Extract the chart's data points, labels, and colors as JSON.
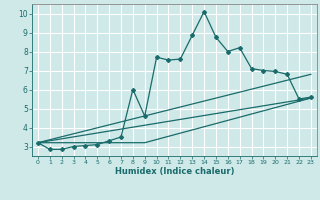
{
  "xlabel": "Humidex (Indice chaleur)",
  "bg_color": "#cfe8e8",
  "grid_color": "#ffffff",
  "line_color": "#1a6b6b",
  "xlim": [
    -0.5,
    23.5
  ],
  "ylim": [
    2.5,
    10.5
  ],
  "xticks": [
    0,
    1,
    2,
    3,
    4,
    5,
    6,
    7,
    8,
    9,
    10,
    11,
    12,
    13,
    14,
    15,
    16,
    17,
    18,
    19,
    20,
    21,
    22,
    23
  ],
  "yticks": [
    3,
    4,
    5,
    6,
    7,
    8,
    9,
    10
  ],
  "curve1_x": [
    0,
    1,
    2,
    3,
    4,
    5,
    6,
    7,
    8,
    9,
    10,
    11,
    12,
    13,
    14,
    15,
    16,
    17,
    18,
    19,
    20,
    21,
    22,
    23
  ],
  "curve1_y": [
    3.2,
    2.85,
    2.85,
    3.0,
    3.05,
    3.1,
    3.3,
    3.5,
    6.0,
    4.6,
    7.7,
    7.55,
    7.6,
    8.85,
    10.1,
    8.75,
    8.0,
    8.2,
    7.1,
    7.0,
    6.95,
    6.8,
    5.5,
    5.6
  ],
  "curve2_x": [
    0,
    23
  ],
  "curve2_y": [
    3.2,
    6.8
  ],
  "curve3_x": [
    0,
    23
  ],
  "curve3_y": [
    3.2,
    5.55
  ],
  "curve4_x": [
    0,
    9,
    23
  ],
  "curve4_y": [
    3.2,
    3.2,
    5.55
  ]
}
